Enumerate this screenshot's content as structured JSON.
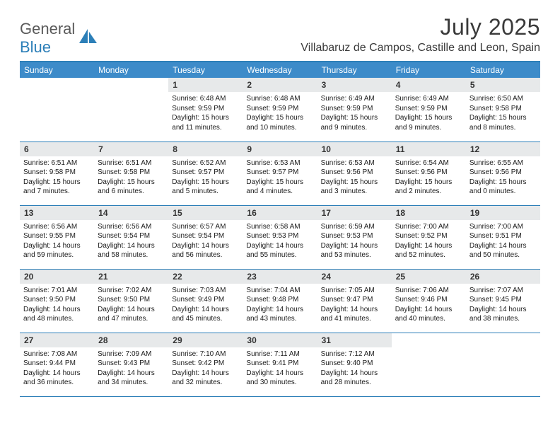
{
  "brand": {
    "word1": "General",
    "word2": "Blue"
  },
  "header": {
    "title": "July 2025",
    "location": "Villabaruz de Campos, Castille and Leon, Spain"
  },
  "colors": {
    "accent": "#3d8bc9",
    "border": "#2c7fb8",
    "dayband": "#e7e9ea",
    "text": "#1a1a1a"
  },
  "dayNames": [
    "Sunday",
    "Monday",
    "Tuesday",
    "Wednesday",
    "Thursday",
    "Friday",
    "Saturday"
  ],
  "weeks": [
    [
      {
        "n": "",
        "lines": [
          "",
          "",
          ""
        ]
      },
      {
        "n": "",
        "lines": [
          "",
          "",
          ""
        ]
      },
      {
        "n": "1",
        "lines": [
          "Sunrise: 6:48 AM",
          "Sunset: 9:59 PM",
          "Daylight: 15 hours and 11 minutes."
        ]
      },
      {
        "n": "2",
        "lines": [
          "Sunrise: 6:48 AM",
          "Sunset: 9:59 PM",
          "Daylight: 15 hours and 10 minutes."
        ]
      },
      {
        "n": "3",
        "lines": [
          "Sunrise: 6:49 AM",
          "Sunset: 9:59 PM",
          "Daylight: 15 hours and 9 minutes."
        ]
      },
      {
        "n": "4",
        "lines": [
          "Sunrise: 6:49 AM",
          "Sunset: 9:59 PM",
          "Daylight: 15 hours and 9 minutes."
        ]
      },
      {
        "n": "5",
        "lines": [
          "Sunrise: 6:50 AM",
          "Sunset: 9:58 PM",
          "Daylight: 15 hours and 8 minutes."
        ]
      }
    ],
    [
      {
        "n": "6",
        "lines": [
          "Sunrise: 6:51 AM",
          "Sunset: 9:58 PM",
          "Daylight: 15 hours and 7 minutes."
        ]
      },
      {
        "n": "7",
        "lines": [
          "Sunrise: 6:51 AM",
          "Sunset: 9:58 PM",
          "Daylight: 15 hours and 6 minutes."
        ]
      },
      {
        "n": "8",
        "lines": [
          "Sunrise: 6:52 AM",
          "Sunset: 9:57 PM",
          "Daylight: 15 hours and 5 minutes."
        ]
      },
      {
        "n": "9",
        "lines": [
          "Sunrise: 6:53 AM",
          "Sunset: 9:57 PM",
          "Daylight: 15 hours and 4 minutes."
        ]
      },
      {
        "n": "10",
        "lines": [
          "Sunrise: 6:53 AM",
          "Sunset: 9:56 PM",
          "Daylight: 15 hours and 3 minutes."
        ]
      },
      {
        "n": "11",
        "lines": [
          "Sunrise: 6:54 AM",
          "Sunset: 9:56 PM",
          "Daylight: 15 hours and 2 minutes."
        ]
      },
      {
        "n": "12",
        "lines": [
          "Sunrise: 6:55 AM",
          "Sunset: 9:56 PM",
          "Daylight: 15 hours and 0 minutes."
        ]
      }
    ],
    [
      {
        "n": "13",
        "lines": [
          "Sunrise: 6:56 AM",
          "Sunset: 9:55 PM",
          "Daylight: 14 hours and 59 minutes."
        ]
      },
      {
        "n": "14",
        "lines": [
          "Sunrise: 6:56 AM",
          "Sunset: 9:54 PM",
          "Daylight: 14 hours and 58 minutes."
        ]
      },
      {
        "n": "15",
        "lines": [
          "Sunrise: 6:57 AM",
          "Sunset: 9:54 PM",
          "Daylight: 14 hours and 56 minutes."
        ]
      },
      {
        "n": "16",
        "lines": [
          "Sunrise: 6:58 AM",
          "Sunset: 9:53 PM",
          "Daylight: 14 hours and 55 minutes."
        ]
      },
      {
        "n": "17",
        "lines": [
          "Sunrise: 6:59 AM",
          "Sunset: 9:53 PM",
          "Daylight: 14 hours and 53 minutes."
        ]
      },
      {
        "n": "18",
        "lines": [
          "Sunrise: 7:00 AM",
          "Sunset: 9:52 PM",
          "Daylight: 14 hours and 52 minutes."
        ]
      },
      {
        "n": "19",
        "lines": [
          "Sunrise: 7:00 AM",
          "Sunset: 9:51 PM",
          "Daylight: 14 hours and 50 minutes."
        ]
      }
    ],
    [
      {
        "n": "20",
        "lines": [
          "Sunrise: 7:01 AM",
          "Sunset: 9:50 PM",
          "Daylight: 14 hours and 48 minutes."
        ]
      },
      {
        "n": "21",
        "lines": [
          "Sunrise: 7:02 AM",
          "Sunset: 9:50 PM",
          "Daylight: 14 hours and 47 minutes."
        ]
      },
      {
        "n": "22",
        "lines": [
          "Sunrise: 7:03 AM",
          "Sunset: 9:49 PM",
          "Daylight: 14 hours and 45 minutes."
        ]
      },
      {
        "n": "23",
        "lines": [
          "Sunrise: 7:04 AM",
          "Sunset: 9:48 PM",
          "Daylight: 14 hours and 43 minutes."
        ]
      },
      {
        "n": "24",
        "lines": [
          "Sunrise: 7:05 AM",
          "Sunset: 9:47 PM",
          "Daylight: 14 hours and 41 minutes."
        ]
      },
      {
        "n": "25",
        "lines": [
          "Sunrise: 7:06 AM",
          "Sunset: 9:46 PM",
          "Daylight: 14 hours and 40 minutes."
        ]
      },
      {
        "n": "26",
        "lines": [
          "Sunrise: 7:07 AM",
          "Sunset: 9:45 PM",
          "Daylight: 14 hours and 38 minutes."
        ]
      }
    ],
    [
      {
        "n": "27",
        "lines": [
          "Sunrise: 7:08 AM",
          "Sunset: 9:44 PM",
          "Daylight: 14 hours and 36 minutes."
        ]
      },
      {
        "n": "28",
        "lines": [
          "Sunrise: 7:09 AM",
          "Sunset: 9:43 PM",
          "Daylight: 14 hours and 34 minutes."
        ]
      },
      {
        "n": "29",
        "lines": [
          "Sunrise: 7:10 AM",
          "Sunset: 9:42 PM",
          "Daylight: 14 hours and 32 minutes."
        ]
      },
      {
        "n": "30",
        "lines": [
          "Sunrise: 7:11 AM",
          "Sunset: 9:41 PM",
          "Daylight: 14 hours and 30 minutes."
        ]
      },
      {
        "n": "31",
        "lines": [
          "Sunrise: 7:12 AM",
          "Sunset: 9:40 PM",
          "Daylight: 14 hours and 28 minutes."
        ]
      },
      {
        "n": "",
        "lines": [
          "",
          "",
          ""
        ]
      },
      {
        "n": "",
        "lines": [
          "",
          "",
          ""
        ]
      }
    ]
  ]
}
